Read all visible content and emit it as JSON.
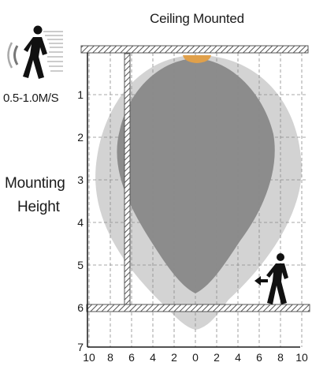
{
  "title": "Ceiling Mounted",
  "speed_label": "0.5-1.0M/S",
  "mounting_label_line1": "Mounting",
  "mounting_label_line2": "Height",
  "y_ticks": [
    "1",
    "2",
    "3",
    "4",
    "5",
    "6",
    "7"
  ],
  "x_ticks": [
    "10",
    "8",
    "6",
    "4",
    "2",
    "0",
    "2",
    "4",
    "6",
    "8",
    "10"
  ],
  "colors": {
    "outer_zone": "#d3d3d3",
    "inner_zone": "#8c8c8c",
    "sensor": "#e0a04a",
    "hatch": "#555555",
    "grid": "#8a8a8a"
  },
  "icons": {
    "top_left": "walking-person-with-signal-icon",
    "bottom_right": "walking-person-with-arrow-icon"
  }
}
